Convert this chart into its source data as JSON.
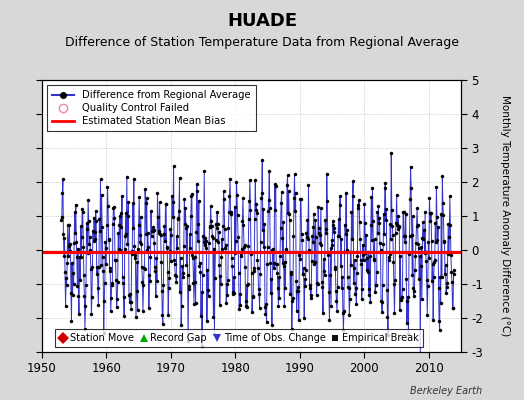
{
  "title": "HUADE",
  "subtitle": "Difference of Station Temperature Data from Regional Average",
  "ylabel": "Monthly Temperature Anomaly Difference (°C)",
  "xlabel_years": [
    1950,
    1960,
    1970,
    1980,
    1990,
    2000,
    2010
  ],
  "xlim": [
    1950,
    2015
  ],
  "ylim": [
    -3,
    5
  ],
  "yticks": [
    -3,
    -2,
    -1,
    0,
    1,
    2,
    3,
    4,
    5
  ],
  "bias_value": -0.05,
  "fig_bg_color": "#d8d8d8",
  "plot_bg_color": "#ffffff",
  "line_color": "#3333cc",
  "bias_color": "#ff0000",
  "marker_color": "#000000",
  "grid_color": "#bbbbbb",
  "title_fontsize": 13,
  "subtitle_fontsize": 9,
  "seed": 42,
  "start_year": 1953.0,
  "n_months": 732,
  "watermark": "Berkeley Earth"
}
